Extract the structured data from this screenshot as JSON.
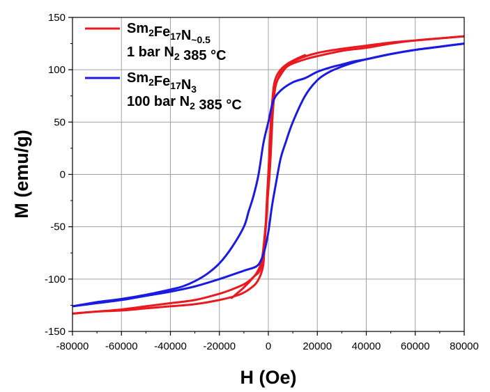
{
  "chart_data": {
    "type": "line",
    "title": "",
    "xlabel": "H (Oe)",
    "ylabel": "M (emu/g)",
    "xlim": [
      -80000,
      80000
    ],
    "ylim": [
      -150,
      150
    ],
    "xticks": [
      -80000,
      -60000,
      -40000,
      -20000,
      0,
      20000,
      40000,
      60000,
      80000
    ],
    "yticks": [
      -150,
      -100,
      -50,
      0,
      50,
      100,
      150
    ],
    "x_tick_labels": [
      "-80000",
      "-60000",
      "-40000",
      "-20000",
      "0",
      "20000",
      "40000",
      "60000",
      "80000"
    ],
    "y_tick_labels": [
      "-150",
      "-100",
      "-50",
      "0",
      "50",
      "100",
      "150"
    ],
    "grid": true,
    "legend_position": "top-left",
    "series": [
      {
        "legend": [
          {
            "text": "Sm",
            "sub": false
          },
          {
            "text": "2",
            "sub": true
          },
          {
            "text": "Fe",
            "sub": false
          },
          {
            "text": "17",
            "sub": true
          },
          {
            "text": "N",
            "sub": false
          },
          {
            "text": "~0.5",
            "sub": true
          }
        ],
        "legend_line2": [
          {
            "text": "1 bar N",
            "sub": false
          },
          {
            "text": "2",
            "sub": true
          },
          {
            "text": " 385 °C",
            "sub": false
          }
        ],
        "color": "#e8191f",
        "branches": [
          {
            "x": [
              80000,
              70000,
              60000,
              50000,
              40000,
              30000,
              20000,
              15000,
              10000,
              7000,
              5000,
              3000,
              2000,
              1000,
              500,
              0,
              -500,
              -1000,
              -1500,
              -2000,
              -3000,
              -5000,
              -8000,
              -12000,
              -20000,
              -30000,
              -40000,
              -50000,
              -60000,
              -70000,
              -80000
            ],
            "y": [
              132,
              130,
              128,
              125,
              121,
              118,
              113,
              110,
              106,
              102,
              97,
              85,
              70,
              45,
              20,
              0,
              -20,
              -45,
              -65,
              -85,
              -95,
              -104,
              -110,
              -115,
              -120,
              -124,
              -126,
              -128,
              -130,
              -131,
              -133
            ]
          },
          {
            "x": [
              -80000,
              -70000,
              -60000,
              -50000,
              -40000,
              -30000,
              -20000,
              -15000,
              -10000,
              -7000,
              -5000,
              -3000,
              -2000,
              -1000,
              0,
              500,
              1000,
              1500,
              2000,
              3000,
              5000,
              8000,
              12000,
              20000,
              30000,
              40000,
              50000,
              60000,
              70000,
              80000
            ],
            "y": [
              -133,
              -131,
              -129,
              -126,
              -123,
              -120,
              -114,
              -110,
              -105,
              -100,
              -95,
              -85,
              -70,
              -45,
              -15,
              0,
              20,
              45,
              65,
              85,
              95,
              104,
              110,
              116,
              120,
              123,
              126,
              128,
              130,
              132
            ]
          },
          {
            "x": [
              -15000,
              -10000,
              -6000,
              -3000,
              -1000,
              0,
              1000,
              2000,
              3000,
              5000,
              8000,
              12000,
              15000
            ],
            "y": [
              -118,
              -108,
              -98,
              -88,
              -50,
              0,
              50,
              80,
              92,
              100,
              106,
              111,
              114
            ]
          }
        ]
      },
      {
        "legend": [
          {
            "text": "Sm",
            "sub": false
          },
          {
            "text": "2",
            "sub": true
          },
          {
            "text": "Fe",
            "sub": false
          },
          {
            "text": "17",
            "sub": true
          },
          {
            "text": "N",
            "sub": false
          },
          {
            "text": "3",
            "sub": true
          }
        ],
        "legend_line2": [
          {
            "text": "100 bar N",
            "sub": false
          },
          {
            "text": "2",
            "sub": true
          },
          {
            "text": " 385 °C",
            "sub": false
          }
        ],
        "color": "#1a1ae0",
        "branches": [
          {
            "x": [
              80000,
              70000,
              60000,
              50000,
              40000,
              35000,
              30000,
              25000,
              20000,
              15000,
              10000,
              5000,
              2000,
              0,
              -2000,
              -4000,
              -6000,
              -8000,
              -10000,
              -15000,
              -20000,
              -25000,
              -30000,
              -35000,
              -40000,
              -50000,
              -60000,
              -70000,
              -80000
            ],
            "y": [
              125,
              122,
              119,
              115,
              110,
              108,
              105,
              102,
              98,
              92,
              88,
              80,
              70,
              50,
              30,
              0,
              -20,
              -35,
              -50,
              -70,
              -85,
              -95,
              -102,
              -107,
              -110,
              -115,
              -119,
              -122,
              -126
            ]
          },
          {
            "x": [
              -80000,
              -70000,
              -60000,
              -50000,
              -40000,
              -30000,
              -20000,
              -10000,
              -5000,
              -3000,
              -1500,
              0,
              1500,
              3000,
              5000,
              7000,
              10000,
              15000,
              20000,
              25000,
              30000,
              35000,
              40000,
              50000,
              60000,
              70000,
              80000
            ],
            "y": [
              -126,
              -123,
              -120,
              -116,
              -112,
              -107,
              -100,
              -92,
              -88,
              -82,
              -72,
              -55,
              -30,
              -10,
              15,
              30,
              50,
              75,
              90,
              98,
              103,
              107,
              110,
              115,
              119,
              122,
              125
            ]
          }
        ]
      }
    ]
  }
}
